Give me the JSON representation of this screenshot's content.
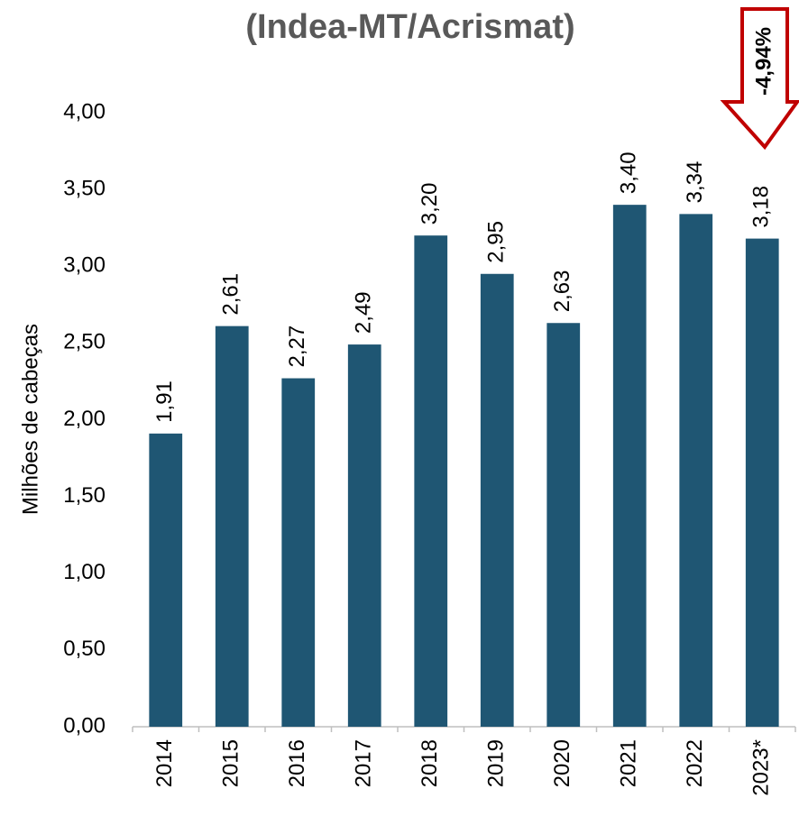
{
  "chart_data": {
    "type": "bar",
    "title": "(Indea-MT/Acrismat)",
    "y_label": "Milhões de cabeças",
    "categories": [
      "2014",
      "2015",
      "2016",
      "2017",
      "2018",
      "2019",
      "2020",
      "2021",
      "2022",
      "2023*"
    ],
    "values": [
      1.91,
      2.61,
      2.27,
      2.49,
      3.2,
      2.95,
      2.63,
      3.4,
      3.34,
      3.18
    ],
    "value_labels": [
      "1,91",
      "2,61",
      "2,27",
      "2,49",
      "3,20",
      "2,95",
      "2,63",
      "3,40",
      "3,34",
      "3,18"
    ],
    "color": "#1f5673",
    "ylim": [
      0,
      4
    ],
    "yticks": [
      {
        "value": 0,
        "label": "0,00"
      },
      {
        "value": 0.5,
        "label": "0,50"
      },
      {
        "value": 1,
        "label": "1,00"
      },
      {
        "value": 1.5,
        "label": "1,50"
      },
      {
        "value": 2,
        "label": "2,00"
      },
      {
        "value": 2.5,
        "label": "2,50"
      },
      {
        "value": 3,
        "label": "3,00"
      },
      {
        "value": 3.5,
        "label": "3,50"
      },
      {
        "value": 4,
        "label": "4,00"
      }
    ],
    "grid": false,
    "annotation": "-4,94%"
  }
}
